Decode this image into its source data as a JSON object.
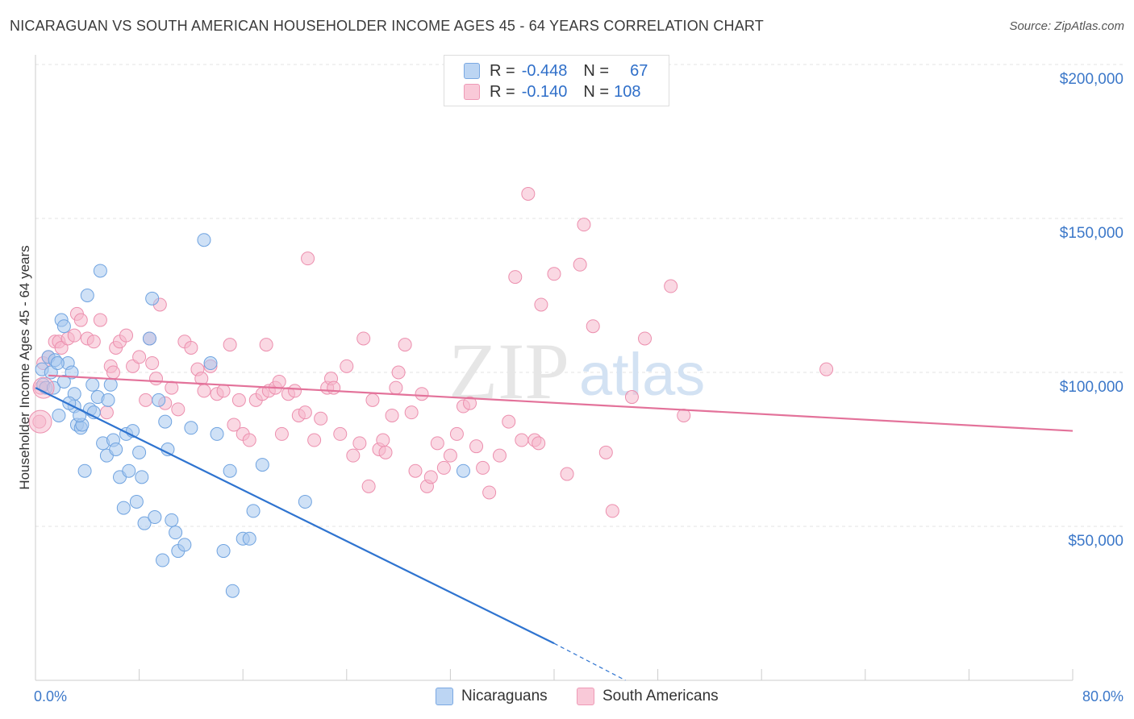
{
  "title": "NICARAGUAN VS SOUTH AMERICAN HOUSEHOLDER INCOME AGES 45 - 64 YEARS CORRELATION CHART",
  "source": "Source: ZipAtlas.com",
  "watermark": {
    "zip": "ZIP",
    "atlas": "atlas"
  },
  "legend": {
    "rows": [
      {
        "r_label": "R =",
        "r_value": "-0.448",
        "n_label": "N =",
        "n_value": "67",
        "color": "#a8c8ef"
      },
      {
        "r_label": "R =",
        "r_value": "-0.140",
        "n_label": "N =",
        "n_value": "108",
        "color": "#f6b8cc"
      }
    ]
  },
  "bottom_legend": [
    {
      "label": "Nicaraguans",
      "color": "#a8c8ef"
    },
    {
      "label": "South Americans",
      "color": "#f6b8cc"
    }
  ],
  "chart_data": {
    "type": "scatter",
    "title": "NICARAGUAN VS SOUTH AMERICAN HOUSEHOLDER INCOME AGES 45 - 64 YEARS CORRELATION CHART",
    "xlabel": "",
    "ylabel": "Householder Income Ages 45 - 64 years",
    "xlim": [
      0,
      80
    ],
    "ylim": [
      0,
      210000
    ],
    "x_tick_labels": [
      "0.0%",
      "80.0%"
    ],
    "y_ticks": [
      50000,
      100000,
      150000,
      200000
    ],
    "y_tick_labels": [
      "$50,000",
      "$100,000",
      "$150,000",
      "$200,000"
    ],
    "grid": true,
    "series": [
      {
        "name": "Nicaraguans",
        "color": "#6fa3e0",
        "fill": "#a8c8ef",
        "line_color": "#2f74d0",
        "trend": {
          "x": [
            0,
            40,
            45.5
          ],
          "y": [
            95000,
            12000,
            0
          ],
          "dashed_from": 40
        },
        "points": [
          [
            0.5,
            101000
          ],
          [
            0.6,
            96000
          ],
          [
            0.8,
            95000
          ],
          [
            1.0,
            105000
          ],
          [
            1.2,
            100000
          ],
          [
            1.4,
            95000
          ],
          [
            1.5,
            104000
          ],
          [
            1.8,
            86000
          ],
          [
            2.0,
            117000
          ],
          [
            2.2,
            115000
          ],
          [
            2.5,
            103000
          ],
          [
            2.8,
            100000
          ],
          [
            3.0,
            93000
          ],
          [
            3.0,
            89000
          ],
          [
            3.2,
            83000
          ],
          [
            3.5,
            82000
          ],
          [
            3.6,
            83000
          ],
          [
            3.8,
            68000
          ],
          [
            4.0,
            125000
          ],
          [
            4.2,
            88000
          ],
          [
            4.5,
            87000
          ],
          [
            4.8,
            92000
          ],
          [
            5.0,
            133000
          ],
          [
            5.2,
            77000
          ],
          [
            5.5,
            73000
          ],
          [
            5.6,
            91000
          ],
          [
            5.8,
            96000
          ],
          [
            6.0,
            78000
          ],
          [
            6.2,
            75000
          ],
          [
            6.5,
            66000
          ],
          [
            6.8,
            56000
          ],
          [
            7.0,
            80000
          ],
          [
            7.2,
            68000
          ],
          [
            7.5,
            81000
          ],
          [
            7.8,
            58000
          ],
          [
            8.0,
            74000
          ],
          [
            8.2,
            66000
          ],
          [
            8.4,
            51000
          ],
          [
            8.8,
            111000
          ],
          [
            9.0,
            124000
          ],
          [
            9.2,
            53000
          ],
          [
            9.5,
            91000
          ],
          [
            9.8,
            39000
          ],
          [
            10.0,
            84000
          ],
          [
            10.2,
            75000
          ],
          [
            10.5,
            52000
          ],
          [
            10.8,
            48000
          ],
          [
            11.0,
            42000
          ],
          [
            11.5,
            44000
          ],
          [
            12.0,
            82000
          ],
          [
            13.0,
            143000
          ],
          [
            13.5,
            103000
          ],
          [
            14.0,
            80000
          ],
          [
            14.5,
            42000
          ],
          [
            15.0,
            68000
          ],
          [
            15.2,
            29000
          ],
          [
            16.0,
            46000
          ],
          [
            16.5,
            46000
          ],
          [
            16.8,
            55000
          ],
          [
            17.5,
            70000
          ],
          [
            20.8,
            58000
          ],
          [
            33.0,
            68000
          ],
          [
            2.2,
            97000
          ],
          [
            4.4,
            96000
          ],
          [
            1.7,
            103000
          ],
          [
            2.6,
            90000
          ],
          [
            3.4,
            86000
          ]
        ]
      },
      {
        "name": "South Americans",
        "color": "#ec8fae",
        "fill": "#f6b8cc",
        "line_color": "#e3729a",
        "trend": {
          "x": [
            1,
            80
          ],
          "y": [
            99000,
            81000
          ]
        },
        "points": [
          [
            0.3,
            84000
          ],
          [
            0.4,
            95000
          ],
          [
            0.6,
            103000
          ],
          [
            1.0,
            105000
          ],
          [
            1.5,
            110000
          ],
          [
            1.8,
            110000
          ],
          [
            2.0,
            108000
          ],
          [
            2.5,
            111000
          ],
          [
            3.0,
            112000
          ],
          [
            3.2,
            119000
          ],
          [
            3.5,
            117000
          ],
          [
            4.0,
            111000
          ],
          [
            4.5,
            110000
          ],
          [
            5.0,
            117000
          ],
          [
            5.5,
            87000
          ],
          [
            5.8,
            102000
          ],
          [
            6.0,
            100000
          ],
          [
            6.2,
            108000
          ],
          [
            6.5,
            110000
          ],
          [
            7.0,
            112000
          ],
          [
            7.5,
            102000
          ],
          [
            8.0,
            105000
          ],
          [
            8.5,
            91000
          ],
          [
            8.8,
            111000
          ],
          [
            9.0,
            103000
          ],
          [
            9.3,
            98000
          ],
          [
            9.6,
            122000
          ],
          [
            10.0,
            90000
          ],
          [
            10.5,
            95000
          ],
          [
            11.0,
            88000
          ],
          [
            11.5,
            110000
          ],
          [
            12.0,
            108000
          ],
          [
            12.5,
            101000
          ],
          [
            12.8,
            98000
          ],
          [
            13.0,
            94000
          ],
          [
            13.5,
            102000
          ],
          [
            14.0,
            93000
          ],
          [
            14.5,
            94000
          ],
          [
            15.0,
            109000
          ],
          [
            15.3,
            83000
          ],
          [
            15.7,
            91000
          ],
          [
            16.0,
            80000
          ],
          [
            16.5,
            78000
          ],
          [
            17.0,
            91000
          ],
          [
            17.5,
            93000
          ],
          [
            17.8,
            109000
          ],
          [
            18.0,
            94000
          ],
          [
            18.5,
            95000
          ],
          [
            18.8,
            97000
          ],
          [
            19.0,
            80000
          ],
          [
            19.5,
            93000
          ],
          [
            20.0,
            94000
          ],
          [
            20.3,
            86000
          ],
          [
            20.8,
            87000
          ],
          [
            21.0,
            137000
          ],
          [
            21.5,
            78000
          ],
          [
            22.0,
            85000
          ],
          [
            22.5,
            95000
          ],
          [
            22.8,
            98000
          ],
          [
            23.0,
            95000
          ],
          [
            23.5,
            80000
          ],
          [
            24.0,
            102000
          ],
          [
            24.5,
            73000
          ],
          [
            25.0,
            77000
          ],
          [
            25.3,
            111000
          ],
          [
            25.7,
            63000
          ],
          [
            26.0,
            91000
          ],
          [
            26.5,
            75000
          ],
          [
            26.8,
            78000
          ],
          [
            27.0,
            74000
          ],
          [
            27.5,
            86000
          ],
          [
            27.8,
            95000
          ],
          [
            28.0,
            100000
          ],
          [
            28.5,
            109000
          ],
          [
            29.0,
            87000
          ],
          [
            29.3,
            68000
          ],
          [
            29.8,
            93000
          ],
          [
            30.2,
            63000
          ],
          [
            30.5,
            66000
          ],
          [
            31.0,
            77000
          ],
          [
            31.5,
            69000
          ],
          [
            32.0,
            73000
          ],
          [
            32.5,
            80000
          ],
          [
            33.0,
            89000
          ],
          [
            33.5,
            90000
          ],
          [
            34.0,
            76000
          ],
          [
            34.5,
            69000
          ],
          [
            35.0,
            61000
          ],
          [
            35.8,
            73000
          ],
          [
            36.5,
            84000
          ],
          [
            37.0,
            131000
          ],
          [
            37.5,
            78000
          ],
          [
            38.0,
            158000
          ],
          [
            38.5,
            78000
          ],
          [
            38.8,
            77000
          ],
          [
            39.0,
            122000
          ],
          [
            40.0,
            132000
          ],
          [
            41.0,
            67000
          ],
          [
            42.0,
            135000
          ],
          [
            42.3,
            148000
          ],
          [
            43.0,
            115000
          ],
          [
            44.0,
            74000
          ],
          [
            44.5,
            55000
          ],
          [
            46.0,
            92000
          ],
          [
            47.0,
            111000
          ],
          [
            49.0,
            128000
          ],
          [
            50.0,
            86000
          ],
          [
            61.0,
            101000
          ]
        ]
      }
    ]
  }
}
